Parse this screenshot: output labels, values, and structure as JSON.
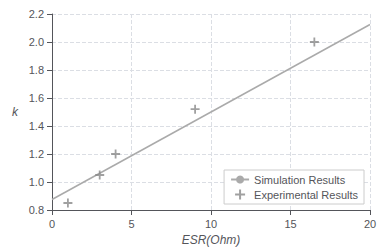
{
  "chart_data": {
    "type": "line",
    "xlabel": "ESR(Ohm)",
    "ylabel": "k",
    "series": [
      {
        "name": "Simulation Results",
        "type": "line",
        "color": "#aaaaaa",
        "line_style": "solid",
        "x": [
          0,
          20
        ],
        "values": [
          0.875,
          2.125
        ]
      },
      {
        "name": "Experimental Results",
        "type": "scatter",
        "color": "#888888",
        "marker": "plus",
        "x": [
          1.0,
          3.0,
          4.0,
          9.0,
          16.5
        ],
        "values": [
          0.85,
          1.05,
          1.2,
          1.52,
          2.0
        ]
      }
    ],
    "xlim": [
      0,
      20
    ],
    "ylim": [
      0.8,
      2.2
    ],
    "xticks": [
      0,
      5,
      10,
      15,
      20
    ],
    "yticks": [
      0.8,
      {
        "value": 1.0,
        "label": "1.0"
      },
      1.2,
      1.4,
      1.6,
      1.8,
      {
        "value": 2.0,
        "label": "2.0"
      },
      2.2
    ],
    "grid": true,
    "legend": "lower right"
  }
}
